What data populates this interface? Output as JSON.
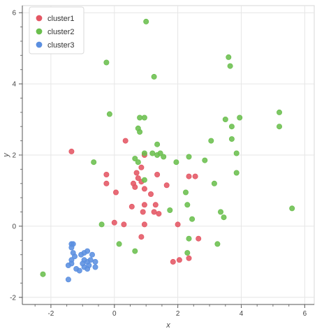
{
  "chart_data": {
    "type": "scatter",
    "title": "",
    "xlabel": "x",
    "ylabel": "y",
    "xlim": [
      -2.9,
      6.3
    ],
    "ylim": [
      -2.2,
      6.2
    ],
    "x_ticks": [
      -2,
      0,
      2,
      4,
      6
    ],
    "y_ticks": [
      -2,
      0,
      2,
      4,
      6
    ],
    "grid": true,
    "legend_position": "top-left",
    "series": [
      {
        "name": "cluster1",
        "color": "#e45764",
        "points": [
          [
            -1.35,
            2.1
          ],
          [
            0.35,
            2.4
          ],
          [
            -0.25,
            1.45
          ],
          [
            -0.25,
            1.2
          ],
          [
            0.05,
            0.95
          ],
          [
            0.85,
            1.65
          ],
          [
            0.95,
            2.0
          ],
          [
            0.7,
            1.5
          ],
          [
            0.75,
            1.35
          ],
          [
            0.6,
            1.2
          ],
          [
            0.65,
            1.1
          ],
          [
            0.85,
            1.25
          ],
          [
            0.95,
            1.05
          ],
          [
            1.35,
            1.45
          ],
          [
            1.15,
            0.9
          ],
          [
            1.3,
            0.6
          ],
          [
            0.55,
            0.55
          ],
          [
            0.95,
            0.6
          ],
          [
            0.9,
            0.4
          ],
          [
            1.25,
            0.4
          ],
          [
            1.4,
            0.35
          ],
          [
            0.0,
            0.1
          ],
          [
            0.3,
            0.05
          ],
          [
            0.95,
            0.05
          ],
          [
            2.0,
            0.05
          ],
          [
            0.85,
            -0.3
          ],
          [
            1.65,
            1.15
          ],
          [
            2.35,
            1.4
          ],
          [
            2.55,
            1.4
          ],
          [
            2.65,
            -0.35
          ],
          [
            2.35,
            -0.9
          ],
          [
            2.05,
            -0.95
          ],
          [
            1.85,
            -1.0
          ]
        ]
      },
      {
        "name": "cluster2",
        "color": "#6bbf4e",
        "points": [
          [
            -0.25,
            4.6
          ],
          [
            1.0,
            5.75
          ],
          [
            1.25,
            4.2
          ],
          [
            -0.15,
            3.15
          ],
          [
            0.8,
            3.05
          ],
          [
            0.95,
            3.05
          ],
          [
            0.75,
            2.75
          ],
          [
            0.8,
            2.65
          ],
          [
            0.65,
            1.9
          ],
          [
            0.75,
            1.8
          ],
          [
            1.2,
            2.05
          ],
          [
            1.35,
            2.0
          ],
          [
            1.45,
            2.05
          ],
          [
            1.35,
            2.3
          ],
          [
            -0.65,
            1.8
          ],
          [
            1.55,
            1.95
          ],
          [
            0.95,
            1.3
          ],
          [
            -0.4,
            0.05
          ],
          [
            0.15,
            -0.5
          ],
          [
            0.65,
            -0.7
          ],
          [
            1.75,
            0.45
          ],
          [
            1.95,
            1.8
          ],
          [
            2.35,
            1.95
          ],
          [
            2.3,
            0.6
          ],
          [
            2.45,
            0.2
          ],
          [
            2.35,
            -0.35
          ],
          [
            2.3,
            -0.75
          ],
          [
            2.85,
            1.85
          ],
          [
            3.05,
            2.4
          ],
          [
            3.15,
            1.2
          ],
          [
            3.25,
            -0.5
          ],
          [
            3.35,
            0.4
          ],
          [
            3.45,
            0.25
          ],
          [
            3.5,
            3.0
          ],
          [
            3.6,
            4.75
          ],
          [
            3.65,
            4.5
          ],
          [
            3.7,
            2.8
          ],
          [
            3.7,
            2.45
          ],
          [
            3.85,
            2.05
          ],
          [
            3.95,
            3.05
          ],
          [
            3.85,
            1.5
          ],
          [
            5.2,
            3.2
          ],
          [
            5.2,
            2.8
          ],
          [
            5.6,
            0.5
          ],
          [
            -2.25,
            -1.35
          ],
          [
            2.25,
            0.95
          ],
          [
            0.95,
            2.05
          ]
        ]
      },
      {
        "name": "cluster3",
        "color": "#5b8fe0",
        "points": [
          [
            -1.35,
            -0.5
          ],
          [
            -1.3,
            -0.5
          ],
          [
            -1.35,
            -0.6
          ],
          [
            -1.3,
            -0.75
          ],
          [
            -1.25,
            -0.85
          ],
          [
            -1.35,
            -0.95
          ],
          [
            -1.45,
            -1.1
          ],
          [
            -1.35,
            -1.05
          ],
          [
            -1.2,
            -1.2
          ],
          [
            -1.1,
            -1.25
          ],
          [
            -1.45,
            -1.5
          ],
          [
            -1.05,
            -0.8
          ],
          [
            -0.95,
            -0.75
          ],
          [
            -0.85,
            -0.7
          ],
          [
            -0.75,
            -0.95
          ],
          [
            -0.95,
            -0.95
          ],
          [
            -0.85,
            -1.0
          ],
          [
            -0.7,
            -0.8
          ],
          [
            -0.6,
            -1.0
          ],
          [
            -0.95,
            -1.15
          ],
          [
            -0.85,
            -1.2
          ],
          [
            -0.6,
            -1.15
          ],
          [
            -1.0,
            -1.05
          ],
          [
            -0.8,
            -1.1
          ]
        ]
      }
    ]
  }
}
